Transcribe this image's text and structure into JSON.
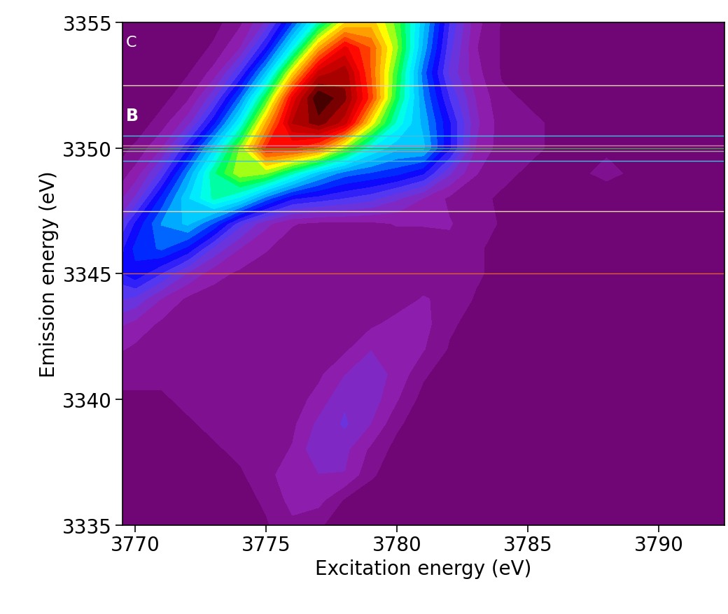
{
  "chart_data": {
    "type": "contour",
    "x_label": "Excitation energy (eV)",
    "y_label": "Emission energy (eV)",
    "xlim": [
      3769.5,
      3792.5
    ],
    "ylim": [
      3335,
      3355
    ],
    "xticks": [
      3770,
      3775,
      3780,
      3785,
      3790
    ],
    "yticks": [
      3335,
      3340,
      3345,
      3350,
      3355
    ],
    "x": [
      3769,
      3770,
      3771,
      3772,
      3773,
      3774,
      3775,
      3776,
      3777,
      3778,
      3779,
      3780,
      3781,
      3782,
      3783,
      3784,
      3785,
      3786,
      3787,
      3788,
      3789,
      3790,
      3791,
      3792,
      3793
    ],
    "y": [
      3335,
      3336,
      3337,
      3338,
      3339,
      3340,
      3341,
      3342,
      3343,
      3344,
      3345,
      3346,
      3347,
      3348,
      3349,
      3350,
      3351,
      3352,
      3353,
      3354,
      3355
    ],
    "cells": [
      [
        0.3,
        0.3,
        0.3,
        0.3,
        0.3,
        0.3,
        0.5,
        0.8,
        0.6,
        0.3,
        0.3,
        0.3,
        0.3,
        0.3,
        0.3,
        0.3,
        0.3,
        0.3,
        0.3,
        0.3,
        0.3,
        0.3,
        0.3,
        0.3,
        0.3
      ],
      [
        0.3,
        0.3,
        0.3,
        0.3,
        0.3,
        0.4,
        0.6,
        1.0,
        1.0,
        0.5,
        0.3,
        0.3,
        0.3,
        0.3,
        0.3,
        0.3,
        0.3,
        0.3,
        0.3,
        0.3,
        0.3,
        0.3,
        0.3,
        0.3,
        0.3
      ],
      [
        0.3,
        0.3,
        0.3,
        0.4,
        0.5,
        0.5,
        0.7,
        1.2,
        1.2,
        1.2,
        0.6,
        0.3,
        0.3,
        0.3,
        0.3,
        0.3,
        0.3,
        0.3,
        0.3,
        0.3,
        0.3,
        0.3,
        0.3,
        0.3,
        0.3
      ],
      [
        0.4,
        0.4,
        0.5,
        0.5,
        0.5,
        0.6,
        0.7,
        0.9,
        1.5,
        1.3,
        0.8,
        0.4,
        0.3,
        0.3,
        0.3,
        0.3,
        0.3,
        0.3,
        0.3,
        0.3,
        0.3,
        0.3,
        0.3,
        0.3,
        0.3
      ],
      [
        0.4,
        0.5,
        0.5,
        0.5,
        0.6,
        0.6,
        0.6,
        0.8,
        1.3,
        1.6,
        1.2,
        0.6,
        0.3,
        0.3,
        0.3,
        0.3,
        0.3,
        0.3,
        0.3,
        0.3,
        0.3,
        0.3,
        0.3,
        0.3,
        0.3
      ],
      [
        0.5,
        0.5,
        0.5,
        0.6,
        0.6,
        0.6,
        0.6,
        0.7,
        1.0,
        1.5,
        1.4,
        0.9,
        0.4,
        0.3,
        0.3,
        0.3,
        0.3,
        0.3,
        0.3,
        0.3,
        0.3,
        0.3,
        0.3,
        0.3,
        0.3
      ],
      [
        0.6,
        0.6,
        0.6,
        0.6,
        0.6,
        0.6,
        0.6,
        0.6,
        0.8,
        1.2,
        1.4,
        1.1,
        0.6,
        0.3,
        0.3,
        0.3,
        0.3,
        0.3,
        0.3,
        0.3,
        0.3,
        0.3,
        0.3,
        0.3,
        0.3
      ],
      [
        1.0,
        0.8,
        0.7,
        0.6,
        0.6,
        0.6,
        0.6,
        0.6,
        0.6,
        0.8,
        1.2,
        1.2,
        0.9,
        0.5,
        0.3,
        0.3,
        0.3,
        0.3,
        0.3,
        0.3,
        0.3,
        0.3,
        0.3,
        0.3,
        0.3
      ],
      [
        1.4,
        1.1,
        0.8,
        0.7,
        0.6,
        0.6,
        0.6,
        0.6,
        0.6,
        0.6,
        0.8,
        1.0,
        1.0,
        0.6,
        0.4,
        0.3,
        0.3,
        0.3,
        0.3,
        0.3,
        0.3,
        0.3,
        0.3,
        0.3,
        0.3
      ],
      [
        2.0,
        1.8,
        1.2,
        0.8,
        0.7,
        0.6,
        0.6,
        0.6,
        0.6,
        0.6,
        0.6,
        0.7,
        0.9,
        0.8,
        0.5,
        0.3,
        0.3,
        0.3,
        0.3,
        0.3,
        0.3,
        0.3,
        0.3,
        0.3,
        0.3
      ],
      [
        2.3,
        2.8,
        2.2,
        1.5,
        1.0,
        0.8,
        0.7,
        0.6,
        0.6,
        0.6,
        0.6,
        0.6,
        0.7,
        0.8,
        0.6,
        0.4,
        0.3,
        0.3,
        0.3,
        0.3,
        0.3,
        0.3,
        0.3,
        0.3,
        0.3
      ],
      [
        2.0,
        3.0,
        3.3,
        2.8,
        1.8,
        1.2,
        0.9,
        0.7,
        0.7,
        0.7,
        0.7,
        0.7,
        0.7,
        0.8,
        0.6,
        0.4,
        0.3,
        0.3,
        0.3,
        0.3,
        0.3,
        0.3,
        0.3,
        0.3,
        0.3
      ],
      [
        1.3,
        2.6,
        3.6,
        4.0,
        3.2,
        2.0,
        1.3,
        0.9,
        0.8,
        0.8,
        0.8,
        0.9,
        0.9,
        0.9,
        0.7,
        0.5,
        0.4,
        0.3,
        0.3,
        0.3,
        0.3,
        0.3,
        0.3,
        0.3,
        0.3
      ],
      [
        0.8,
        1.6,
        3.0,
        4.2,
        5.0,
        4.5,
        3.4,
        2.6,
        2.4,
        2.2,
        2.0,
        1.6,
        1.2,
        0.8,
        0.6,
        0.5,
        0.4,
        0.5,
        0.5,
        0.4,
        0.4,
        0.4,
        0.4,
        0.4,
        0.4
      ],
      [
        0.5,
        1.0,
        2.0,
        3.6,
        5.2,
        6.2,
        6.0,
        5.0,
        4.0,
        3.4,
        3.2,
        3.0,
        2.6,
        1.6,
        0.9,
        0.6,
        0.5,
        0.5,
        0.5,
        0.6,
        0.5,
        0.4,
        0.4,
        0.4,
        0.4
      ],
      [
        0.3,
        0.6,
        1.2,
        2.5,
        4.2,
        6.0,
        8.0,
        8.0,
        7.5,
        6.0,
        4.6,
        4.0,
        4.0,
        2.6,
        1.2,
        0.7,
        0.6,
        0.5,
        0.5,
        0.5,
        0.5,
        0.4,
        0.4,
        0.4,
        0.4
      ],
      [
        0.2,
        0.3,
        0.7,
        1.4,
        2.8,
        4.6,
        7.0,
        9.0,
        9.5,
        8.8,
        6.5,
        4.8,
        3.8,
        2.6,
        1.3,
        0.7,
        0.6,
        0.5,
        0.5,
        0.5,
        0.5,
        0.4,
        0.4,
        0.4,
        0.4
      ],
      [
        0.2,
        0.2,
        0.4,
        0.8,
        1.8,
        3.4,
        5.6,
        8.4,
        10.0,
        9.4,
        7.8,
        5.4,
        3.6,
        2.2,
        1.2,
        0.6,
        0.5,
        0.5,
        0.5,
        0.4,
        0.3,
        0.3,
        0.3,
        0.3,
        0.3
      ],
      [
        0.2,
        0.2,
        0.3,
        0.5,
        1.0,
        2.2,
        4.0,
        6.6,
        8.8,
        9.2,
        7.6,
        5.6,
        3.4,
        1.8,
        1.0,
        0.5,
        0.5,
        0.4,
        0.3,
        0.3,
        0.3,
        0.3,
        0.3,
        0.3,
        0.3
      ],
      [
        0.2,
        0.2,
        0.2,
        0.3,
        0.6,
        1.2,
        2.6,
        4.6,
        7.0,
        8.4,
        7.6,
        6.0,
        3.8,
        2.0,
        0.9,
        0.5,
        0.4,
        0.3,
        0.3,
        0.3,
        0.3,
        0.3,
        0.3,
        0.3,
        0.3
      ],
      [
        0.2,
        0.2,
        0.2,
        0.2,
        0.4,
        0.8,
        1.6,
        3.2,
        5.0,
        6.6,
        6.8,
        5.8,
        4.0,
        2.2,
        1.0,
        0.5,
        0.4,
        0.3,
        0.3,
        0.3,
        0.3,
        0.3,
        0.3,
        0.3,
        0.3
      ]
    ],
    "lines": [
      {
        "y": 3352.5,
        "color": "#e8d8b0"
      },
      {
        "y": 3350.5,
        "color": "#40c0e0"
      },
      {
        "y": 3350.1,
        "color": "#d080a0"
      },
      {
        "y": 3350.0,
        "color": "#40a040"
      },
      {
        "y": 3349.9,
        "color": "#a0a0a0"
      },
      {
        "y": 3349.5,
        "color": "#40c0e0"
      },
      {
        "y": 3347.5,
        "color": "#e8d8b0"
      },
      {
        "y": 3345.0,
        "color": "#e06030"
      }
    ],
    "annotations": [
      "C",
      "B"
    ]
  }
}
